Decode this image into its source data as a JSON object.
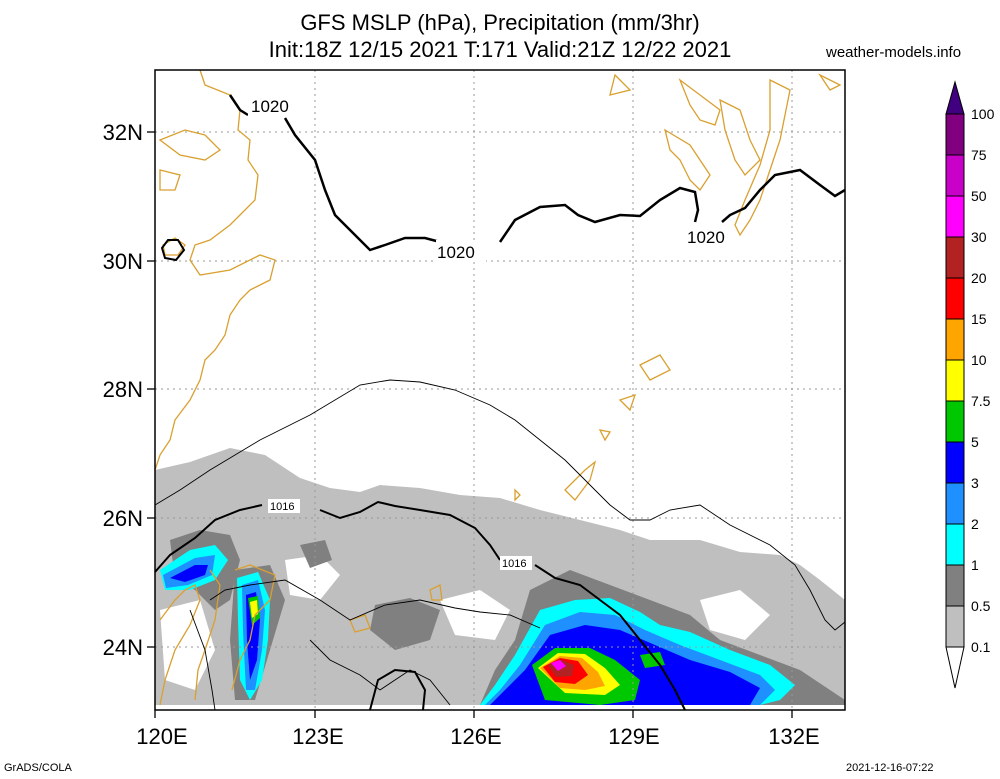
{
  "header": {
    "title_line1": "GFS MSLP (hPa), Precipitation (mm/3hr)",
    "title_line2": "Init:18Z 12/15 2021 T:171 Valid:21Z 12/22 2021",
    "website": "weather-models.info"
  },
  "map": {
    "lat_labels": [
      "32N",
      "30N",
      "28N",
      "26N",
      "24N"
    ],
    "lon_labels": [
      "120E",
      "123E",
      "126E",
      "129E",
      "132E"
    ],
    "isobar_labels": [
      "1020",
      "1020",
      "1020",
      "1016",
      "1016"
    ]
  },
  "colorbar": {
    "levels": [
      "0.1",
      "0.5",
      "1",
      "2",
      "3",
      "5",
      "7.5",
      "10",
      "15",
      "20",
      "30",
      "50",
      "75",
      "100"
    ],
    "colors": [
      "#ffffff",
      "#bfbfbf",
      "#808080",
      "#00ffff",
      "#1e90ff",
      "#0000ff",
      "#00c800",
      "#ffff00",
      "#ffa500",
      "#ff0000",
      "#b22222",
      "#ff00ff",
      "#c800c8",
      "#800080",
      "#400080"
    ]
  },
  "footer": {
    "left": "GrADS/COLA",
    "right": "2021-12-16-07:22"
  }
}
